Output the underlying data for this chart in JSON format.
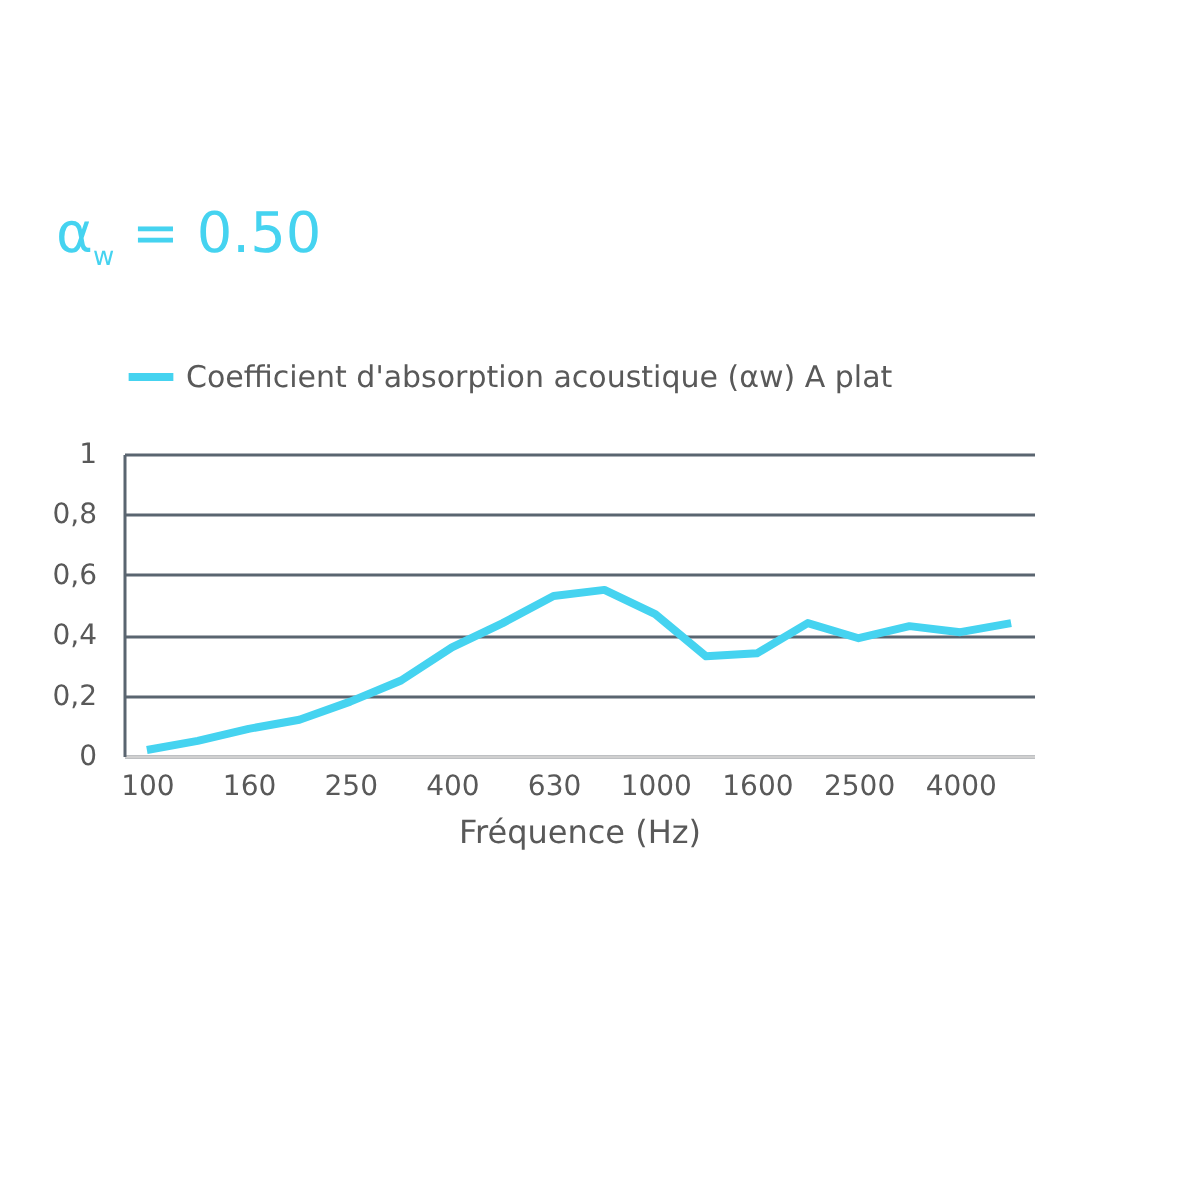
{
  "chart_data": {
    "type": "line",
    "title": "α$_{w}$ = 0.50",
    "xlabel": "Fréquence (Hz)",
    "categories": [
      "100",
      null,
      "160",
      null,
      "250",
      null,
      "400",
      null,
      "630",
      null,
      "1000",
      null,
      "1600",
      null,
      "2500",
      null,
      "4000",
      null
    ],
    "series": [
      {
        "name": "Coefficient d'absorption acoustique (αw) A plat",
        "color": "#45d3f0",
        "values": [
          0.02,
          0.05,
          0.09,
          0.12,
          0.18,
          0.25,
          0.36,
          0.44,
          0.53,
          0.55,
          0.47,
          0.33,
          0.34,
          0.44,
          0.39,
          0.43,
          0.41,
          0.44
        ]
      }
    ],
    "ylim": [
      0,
      1
    ],
    "yticks": [
      0,
      {
        "value": 0.2,
        "label": "0,2"
      },
      {
        "value": 0.4,
        "label": "0,4"
      },
      {
        "value": 0.6,
        "label": "0,6"
      },
      {
        "value": 0.8,
        "label": "0,8"
      },
      1
    ],
    "grid": "y",
    "legend": "top",
    "marker": "none",
    "line_style": "solid"
  }
}
